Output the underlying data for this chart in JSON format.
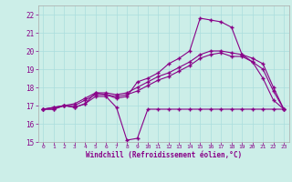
{
  "background_color": "#cceee8",
  "grid_color": "#aadddd",
  "line_color": "#880088",
  "marker": "+",
  "xlabel": "Windchill (Refroidissement éolien,°C)",
  "xlabel_color": "#880088",
  "tick_color": "#880088",
  "ylim": [
    15,
    22.5
  ],
  "xlim": [
    -0.5,
    23.5
  ],
  "yticks": [
    15,
    16,
    17,
    18,
    19,
    20,
    21,
    22
  ],
  "xticks": [
    0,
    1,
    2,
    3,
    4,
    5,
    6,
    7,
    8,
    9,
    10,
    11,
    12,
    13,
    14,
    15,
    16,
    17,
    18,
    19,
    20,
    21,
    22,
    23
  ],
  "series1_x": [
    0,
    1,
    2,
    3,
    4,
    5,
    6,
    7,
    8,
    9,
    10,
    11,
    12,
    13,
    14,
    15,
    16,
    17,
    18,
    19,
    20,
    21,
    22,
    23
  ],
  "series1_y": [
    16.8,
    16.8,
    17.0,
    16.9,
    17.1,
    17.5,
    17.5,
    16.9,
    15.1,
    15.2,
    16.8,
    16.8,
    16.8,
    16.8,
    16.8,
    16.8,
    16.8,
    16.8,
    16.8,
    16.8,
    16.8,
    16.8,
    16.8,
    16.8
  ],
  "series2_x": [
    0,
    1,
    2,
    3,
    4,
    5,
    6,
    7,
    8,
    9,
    10,
    11,
    12,
    13,
    14,
    15,
    16,
    17,
    18,
    19,
    20,
    21,
    22,
    23
  ],
  "series2_y": [
    16.8,
    16.8,
    17.0,
    16.9,
    17.1,
    17.7,
    17.6,
    17.4,
    17.5,
    18.3,
    18.5,
    18.8,
    19.3,
    19.6,
    20.0,
    21.8,
    21.7,
    21.6,
    21.3,
    19.8,
    19.4,
    18.5,
    17.3,
    16.8
  ],
  "series3_x": [
    0,
    1,
    2,
    3,
    4,
    5,
    6,
    7,
    8,
    9,
    10,
    11,
    12,
    13,
    14,
    15,
    16,
    17,
    18,
    19,
    20,
    21,
    22,
    23
  ],
  "series3_y": [
    16.8,
    16.9,
    17.0,
    17.0,
    17.3,
    17.6,
    17.6,
    17.5,
    17.6,
    17.8,
    18.1,
    18.4,
    18.6,
    18.9,
    19.2,
    19.6,
    19.8,
    19.9,
    19.7,
    19.7,
    19.4,
    19.0,
    17.8,
    16.8
  ],
  "series4_x": [
    0,
    1,
    2,
    3,
    4,
    5,
    6,
    7,
    8,
    9,
    10,
    11,
    12,
    13,
    14,
    15,
    16,
    17,
    18,
    19,
    20,
    21,
    22,
    23
  ],
  "series4_y": [
    16.8,
    16.9,
    17.0,
    17.1,
    17.4,
    17.7,
    17.7,
    17.6,
    17.7,
    18.0,
    18.3,
    18.6,
    18.8,
    19.1,
    19.4,
    19.8,
    20.0,
    20.0,
    19.9,
    19.8,
    19.6,
    19.3,
    18.0,
    16.8
  ]
}
